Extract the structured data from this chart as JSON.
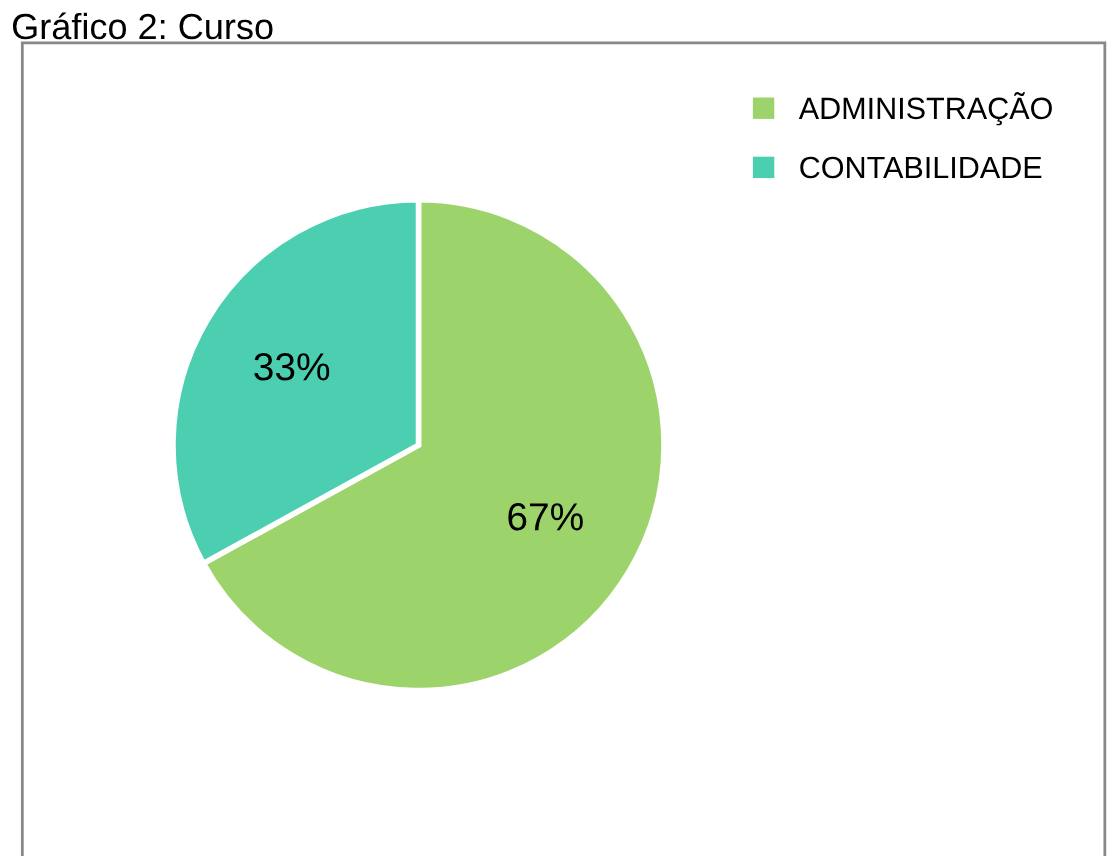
{
  "chart_data": {
    "type": "pie",
    "title": "Gráfico 2: Curso",
    "categories": [
      "ADMINISTRAÇÃO",
      "CONTABILIDADE"
    ],
    "values": [
      67,
      33
    ],
    "colors": [
      "#9dd36b",
      "#4ccfb0"
    ],
    "value_labels": [
      "67%",
      "33%"
    ],
    "legend": "top right"
  }
}
